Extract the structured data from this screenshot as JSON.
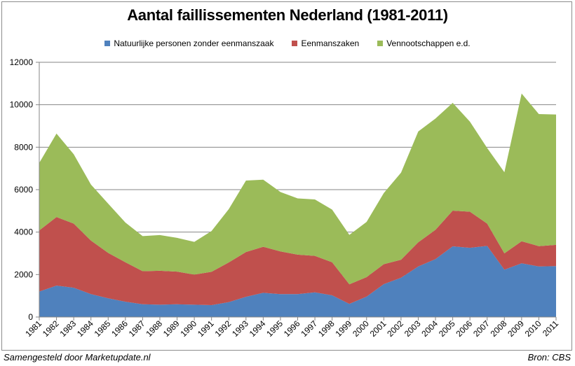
{
  "chart_data": {
    "type": "area",
    "stacked": true,
    "title": "Aantal faillissementen Nederland (1981-2011)",
    "xlabel": "",
    "ylabel": "",
    "x": [
      "1981",
      "1982",
      "1983",
      "1984",
      "1985",
      "1986",
      "1987",
      "1988",
      "1989",
      "1990",
      "1991",
      "1992",
      "1993",
      "1994",
      "1995",
      "1996",
      "1997",
      "1998",
      "1999",
      "2000",
      "2001",
      "2002",
      "2003",
      "2004",
      "2005",
      "2006",
      "2007",
      "2008",
      "2009",
      "2010",
      "2011"
    ],
    "ylim": [
      0,
      12000
    ],
    "yticks": [
      0,
      2000,
      4000,
      6000,
      8000,
      10000,
      12000
    ],
    "grid": true,
    "legend_position": "top",
    "series": [
      {
        "name": "Natuurlijke personen zonder eenmanszaak",
        "color": "#4f81bd",
        "values": [
          1200,
          1480,
          1380,
          1080,
          880,
          720,
          600,
          580,
          600,
          580,
          560,
          700,
          950,
          1140,
          1080,
          1080,
          1160,
          1020,
          620,
          960,
          1550,
          1850,
          2380,
          2730,
          3330,
          3260,
          3350,
          2230,
          2530,
          2380,
          2400
        ]
      },
      {
        "name": "Eenmanszaken",
        "color": "#c0504d",
        "values": [
          2880,
          3230,
          3020,
          2520,
          2140,
          1860,
          1560,
          1600,
          1540,
          1420,
          1570,
          1870,
          2110,
          2170,
          2010,
          1860,
          1720,
          1560,
          920,
          920,
          940,
          850,
          1140,
          1380,
          1680,
          1700,
          1050,
          770,
          1040,
          960,
          1000
        ]
      },
      {
        "name": "Vennootschappen e.d.",
        "color": "#9bbb59",
        "values": [
          3180,
          3930,
          3270,
          2640,
          2320,
          1870,
          1650,
          1680,
          1590,
          1540,
          1920,
          2510,
          3370,
          3160,
          2800,
          2650,
          2660,
          2480,
          2330,
          2600,
          3350,
          4100,
          5220,
          5240,
          5080,
          4240,
          3560,
          3820,
          6960,
          6220,
          6140
        ]
      }
    ]
  },
  "footer": {
    "left": "Samengesteld door Marketupdate.nl",
    "right": "Bron: CBS"
  }
}
